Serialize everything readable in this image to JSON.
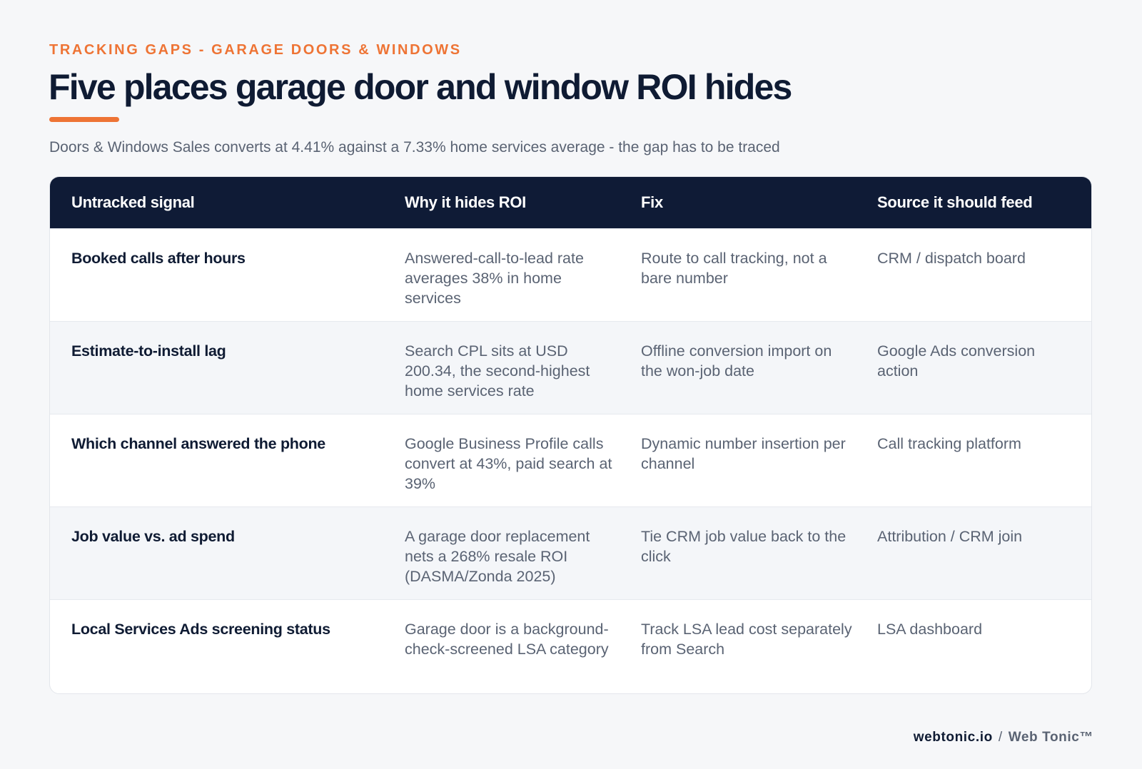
{
  "header": {
    "eyebrow": "TRACKING GAPS - GARAGE DOORS & WINDOWS",
    "title": "Five places garage door and window ROI hides",
    "subtitle": "Doors & Windows Sales converts at 4.41% against a 7.33% home services average - the gap has to be traced"
  },
  "table": {
    "columns": [
      "Untracked signal",
      "Why it hides ROI",
      "Fix",
      "Source it should feed"
    ],
    "rows": [
      {
        "signal": "Booked calls after hours",
        "why": "Answered-call-to-lead rate averages 38% in home services",
        "fix": "Route to call tracking, not a bare number",
        "source": "CRM / dispatch board"
      },
      {
        "signal": "Estimate-to-install lag",
        "why": "Search CPL sits at USD 200.34, the second-highest home services rate",
        "fix": "Offline conversion import on the won-job date",
        "source": "Google Ads conversion action"
      },
      {
        "signal": "Which channel answered the phone",
        "why": "Google Business Profile calls convert at 43%, paid search at 39%",
        "fix": "Dynamic number insertion per channel",
        "source": "Call tracking platform"
      },
      {
        "signal": "Job value vs. ad spend",
        "why": "A garage door replacement nets a 268% resale ROI (DASMA/Zonda 2025)",
        "fix": "Tie CRM job value back to the click",
        "source": "Attribution / CRM join"
      },
      {
        "signal": "Local Services Ads screening status",
        "why": "Garage door is a background-check-screened LSA category",
        "fix": "Track LSA lead cost separately from Search",
        "source": "LSA dashboard"
      }
    ]
  },
  "footer": {
    "domain": "webtonic.io",
    "separator": "/",
    "brand": "Web Tonic™"
  },
  "colors": {
    "accent": "#ee7435",
    "header_bg": "#0f1b36",
    "text_dark": "#0f1b33",
    "text_muted": "#5a6373"
  }
}
